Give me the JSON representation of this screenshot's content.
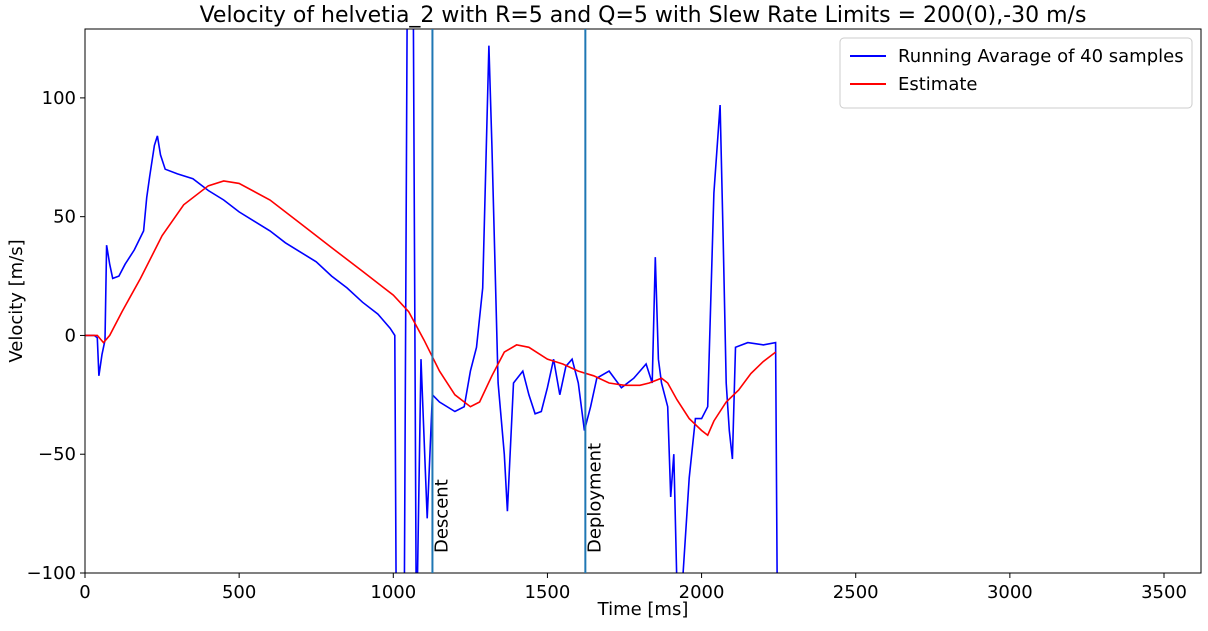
{
  "chart_data": {
    "type": "line",
    "title": "Velocity of helvetia_2 with R=5 and Q=5 with Slew Rate Limits = 200(0),-30 m/s",
    "xlabel": "Time [ms]",
    "ylabel": "Velocity [m/s]",
    "xlim": [
      0,
      3620
    ],
    "ylim": [
      -100,
      129
    ],
    "xticks": [
      0,
      500,
      1000,
      1500,
      2000,
      2500,
      3000,
      3500
    ],
    "yticks": [
      {
        "value": -100,
        "label": "−100"
      },
      {
        "value": -50,
        "label": "−50"
      },
      0,
      50,
      100
    ],
    "legend": "upper right",
    "vlines": [
      {
        "x": 1127,
        "label": "Descent",
        "color": "#1f77b4"
      },
      {
        "x": 1623,
        "label": "Deployment",
        "color": "#1f77b4"
      }
    ],
    "series": [
      {
        "name": "Running Avarage of 40 samples",
        "color": "#0000ff",
        "x": [
          0,
          30,
          40,
          45,
          55,
          65,
          70,
          80,
          90,
          110,
          130,
          160,
          190,
          200,
          210,
          225,
          235,
          245,
          260,
          300,
          350,
          400,
          450,
          500,
          550,
          600,
          650,
          700,
          750,
          800,
          850,
          900,
          950,
          990,
          1005,
          1010,
          1035,
          1045,
          1065,
          1075,
          1090,
          1110,
          1127,
          1150,
          1200,
          1230,
          1250,
          1270,
          1290,
          1310,
          1320,
          1340,
          1360,
          1370,
          1390,
          1420,
          1440,
          1460,
          1480,
          1500,
          1520,
          1540,
          1560,
          1580,
          1600,
          1620,
          1640,
          1660,
          1700,
          1740,
          1780,
          1820,
          1840,
          1850,
          1860,
          1870,
          1890,
          1900,
          1910,
          1920,
          1940,
          1960,
          1980,
          2000,
          2020,
          2040,
          2060,
          2070,
          2080,
          2090,
          2100,
          2110,
          2150,
          2200,
          2240,
          2245
        ],
        "values": [
          0,
          0,
          -1,
          -17,
          -8,
          -2,
          38,
          30,
          24,
          25,
          30,
          36,
          44,
          58,
          67,
          80,
          84,
          76,
          70,
          68,
          66,
          61,
          57,
          52,
          48,
          44,
          39,
          35,
          31,
          25,
          20,
          14,
          9,
          3,
          0,
          -130,
          -130,
          140,
          140,
          -130,
          -10,
          -77,
          -25,
          -28,
          -32,
          -30,
          -15,
          -5,
          20,
          122,
          80,
          -20,
          -50,
          -74,
          -20,
          -15,
          -25,
          -33,
          -32,
          -22,
          -10,
          -25,
          -13,
          -10,
          -20,
          -40,
          -30,
          -18,
          -15,
          -22,
          -18,
          -12,
          -20,
          33,
          -10,
          -20,
          -30,
          -68,
          -50,
          -105,
          -100,
          -60,
          -35,
          -35,
          -30,
          60,
          97,
          40,
          -20,
          -40,
          -52,
          -5,
          -3,
          -4,
          -3,
          -100
        ]
      },
      {
        "name": "Estimate",
        "color": "#ff0000",
        "x": [
          0,
          40,
          60,
          80,
          120,
          180,
          250,
          320,
          400,
          450,
          500,
          600,
          700,
          800,
          900,
          1000,
          1050,
          1100,
          1150,
          1200,
          1250,
          1280,
          1320,
          1360,
          1400,
          1440,
          1500,
          1550,
          1600,
          1650,
          1700,
          1750,
          1800,
          1830,
          1850,
          1870,
          1890,
          1920,
          1960,
          2000,
          2020,
          2040,
          2080,
          2120,
          2160,
          2200,
          2240
        ],
        "values": [
          0,
          0,
          -3,
          0,
          10,
          24,
          42,
          55,
          63,
          65,
          64,
          57,
          47,
          37,
          27,
          17,
          10,
          -2,
          -15,
          -25,
          -30,
          -28,
          -17,
          -7,
          -4,
          -5,
          -10,
          -12,
          -15,
          -17,
          -20,
          -21,
          -21,
          -20,
          -19,
          -18,
          -20,
          -27,
          -35,
          -40,
          -42,
          -36,
          -28,
          -23,
          -16,
          -11,
          -7
        ]
      }
    ]
  }
}
